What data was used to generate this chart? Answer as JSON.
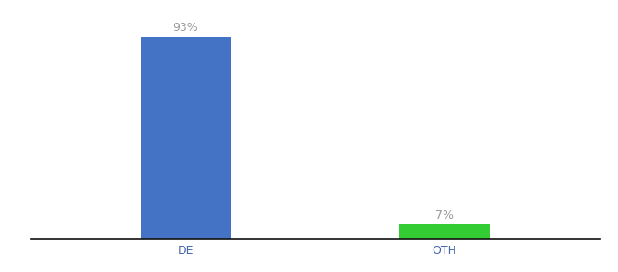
{
  "categories": [
    "DE",
    "OTH"
  ],
  "values": [
    93,
    7
  ],
  "bar_colors": [
    "#4472c4",
    "#33cc33"
  ],
  "value_labels": [
    "93%",
    "7%"
  ],
  "ylim": [
    0,
    100
  ],
  "background_color": "#ffffff",
  "label_fontsize": 9,
  "tick_fontsize": 9,
  "bar_width": 0.35,
  "x_positions": [
    0,
    1
  ],
  "xlim": [
    -0.6,
    1.6
  ],
  "label_color": "#999999",
  "tick_color": "#4466aa"
}
